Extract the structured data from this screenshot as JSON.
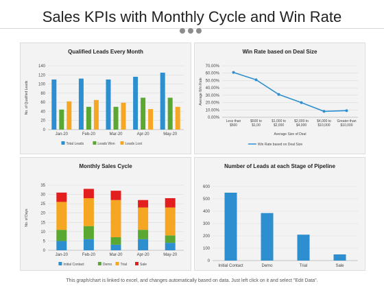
{
  "page": {
    "title": "Sales KPIs with Monthly Cycle and Win Rate",
    "footer": "This graph/chart is linked to excel, and changes automatically based on data. Just left click on it and select \"Edit Data\"."
  },
  "colors": {
    "blue": "#2e8fd0",
    "green": "#5aa832",
    "orange": "#f5a623",
    "red": "#e21e1e",
    "line": "#2e8fd0"
  },
  "chart_data": [
    {
      "type": "bar",
      "title": "Qualified Leads Every Month",
      "xlabel": "",
      "ylabel": "No. of Qualified Leads",
      "ylim": [
        0,
        140
      ],
      "yticks": [
        "0",
        "20",
        "40",
        "60",
        "80",
        "100",
        "120",
        "140"
      ],
      "categories": [
        "Jan-20",
        "Feb-20",
        "Mar-20",
        "Apr-20",
        "May-20"
      ],
      "series": [
        {
          "name": "Total Leads",
          "values": [
            110,
            112,
            110,
            116,
            125
          ]
        },
        {
          "name": "Leads Won",
          "values": [
            44,
            50,
            50,
            70,
            70
          ]
        },
        {
          "name": "Leads Lost",
          "values": [
            62,
            65,
            59,
            45,
            50
          ]
        }
      ],
      "legend": "bottom"
    },
    {
      "type": "line",
      "title": "Win Rate based on Deal Size",
      "xlabel": "Average Size of Deal",
      "ylabel": "Average Win Rate",
      "ylim": [
        0,
        70
      ],
      "yticks": [
        "0.00%",
        "10.00%",
        "20.00%",
        "30.00%",
        "40.00%",
        "50.00%",
        "60.00%",
        "70.00%"
      ],
      "categories": [
        [
          "Less than",
          "$500"
        ],
        [
          "$500 to",
          "$1,00"
        ],
        [
          "$1,000 to",
          "$2,000"
        ],
        [
          "$2,000 to",
          "$4,000"
        ],
        [
          "$4,000 to",
          "$10,000"
        ],
        [
          "Greater than",
          "$10,000"
        ]
      ],
      "series": [
        {
          "name": "Win Rate based on Deal Size",
          "values": [
            61,
            51,
            31,
            20,
            8,
            9
          ]
        }
      ],
      "legend": "bottom"
    },
    {
      "type": "bar",
      "stacked": true,
      "title": "Monthly Sales Cycle",
      "xlabel": "",
      "ylabel": "No. of Days",
      "ylim": [
        0,
        35
      ],
      "yticks": [
        "0",
        "5",
        "10",
        "15",
        "20",
        "25",
        "30",
        "35"
      ],
      "categories": [
        "Jan-20",
        "Feb-20",
        "Mar-20",
        "Apr-20",
        "May-20"
      ],
      "series": [
        {
          "name": "Initial Contact",
          "values": [
            5,
            6,
            3,
            6,
            4
          ]
        },
        {
          "name": "Demo",
          "values": [
            6,
            7,
            4,
            5,
            4
          ]
        },
        {
          "name": "Trial",
          "values": [
            15,
            15,
            20,
            12,
            15
          ]
        },
        {
          "name": "Sale",
          "values": [
            5,
            5,
            5,
            4,
            5
          ]
        }
      ],
      "legend": "bottom"
    },
    {
      "type": "bar",
      "title": "Number of Leads at each Stage of Pipeline",
      "xlabel": "",
      "ylabel": "",
      "ylim": [
        0,
        600
      ],
      "yticks": [
        "0",
        "100",
        "200",
        "300",
        "400",
        "500",
        "600"
      ],
      "categories": [
        "Initial Contact",
        "Demo",
        "Trial",
        "Sale"
      ],
      "values": [
        550,
        385,
        210,
        50
      ]
    }
  ]
}
